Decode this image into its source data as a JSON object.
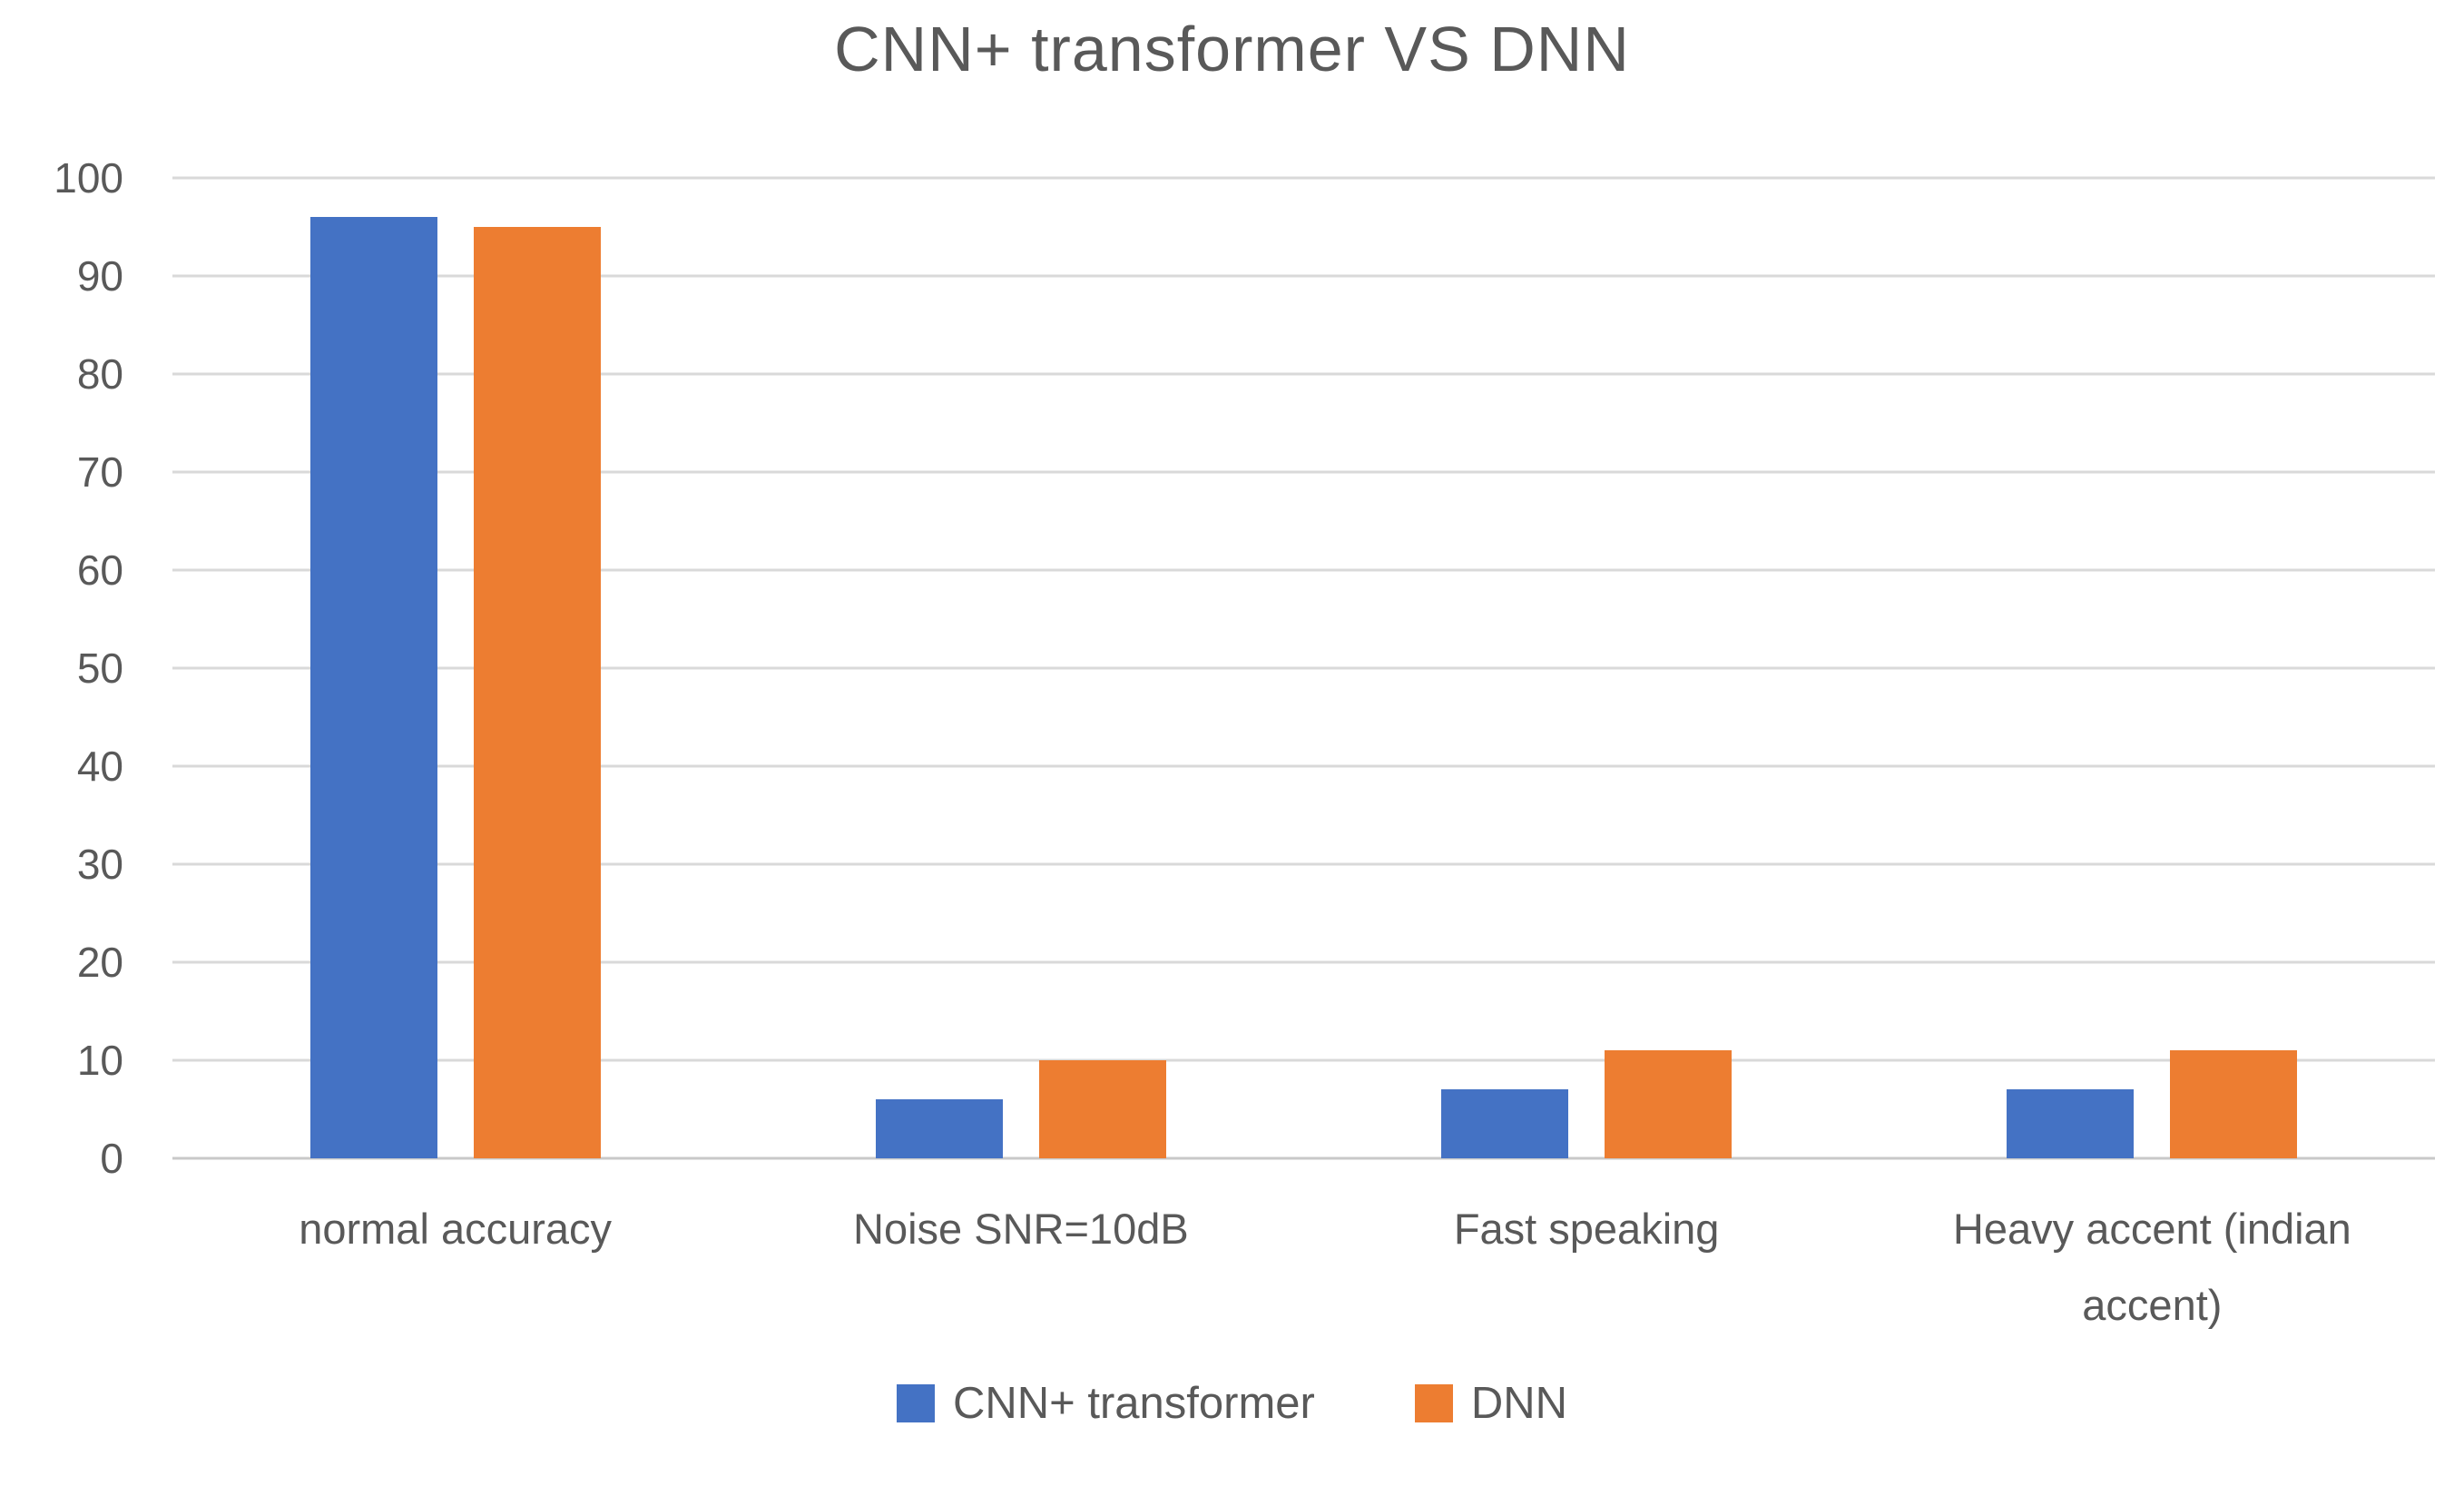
{
  "chart_data": {
    "type": "bar",
    "title": "CNN+ transformer VS DNN",
    "categories": [
      "normal accuracy",
      "Noise SNR=10dB",
      "Fast speaking",
      "Heavy accent (indian accent)"
    ],
    "series": [
      {
        "name": "CNN+ transformer",
        "color": "#4472C4",
        "values": [
          96,
          6,
          7,
          7
        ]
      },
      {
        "name": "DNN",
        "color": "#ED7D31",
        "values": [
          95,
          10,
          11,
          11
        ]
      }
    ],
    "xlabel": "",
    "ylabel": "",
    "ylim": [
      0,
      100
    ],
    "yticks": [
      0,
      10,
      20,
      30,
      40,
      50,
      60,
      70,
      80,
      90,
      100
    ],
    "grid": true,
    "legend_position": "bottom",
    "colors": {
      "text": "#595959",
      "gridline": "#D9D9D9",
      "background": "#FFFFFF",
      "series_blue": "#4472C4",
      "series_orange": "#ED7D31"
    }
  }
}
